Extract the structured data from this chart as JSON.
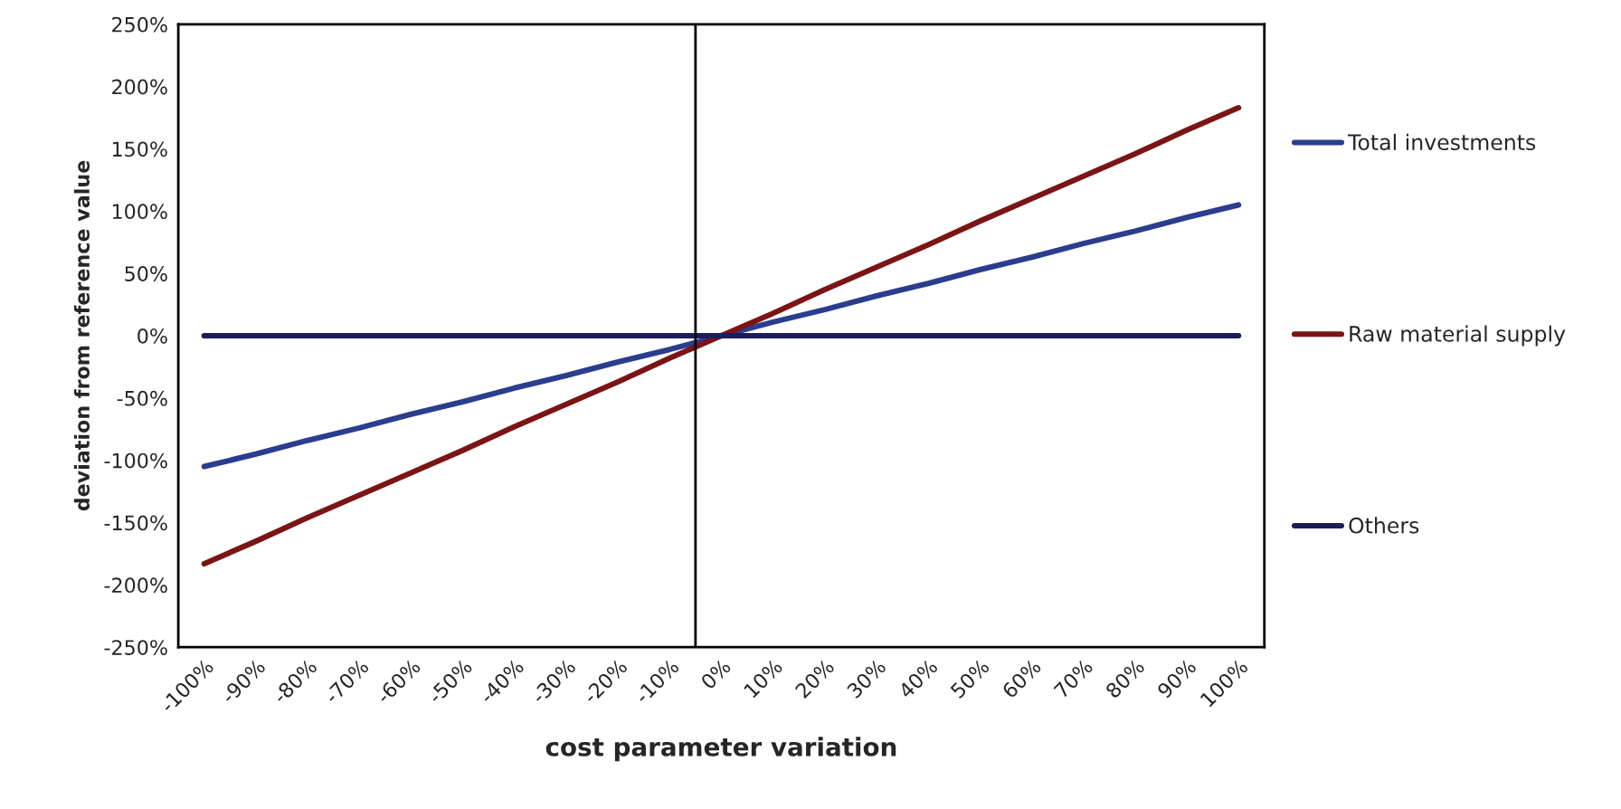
{
  "chart_data": {
    "type": "line",
    "xlabel": "cost parameter variation",
    "ylabel": "deviation from reference value",
    "x": [
      -100,
      -90,
      -80,
      -70,
      -60,
      -50,
      -40,
      -30,
      -20,
      -10,
      0,
      10,
      20,
      30,
      40,
      50,
      60,
      70,
      80,
      90,
      100
    ],
    "xlim": [
      -105,
      105
    ],
    "xticks": [
      {
        "value": -100,
        "label": "-100%"
      },
      {
        "value": -90,
        "label": "-90%"
      },
      {
        "value": -80,
        "label": "-80%"
      },
      {
        "value": -70,
        "label": "-70%"
      },
      {
        "value": -60,
        "label": "-60%"
      },
      {
        "value": -50,
        "label": "-50%"
      },
      {
        "value": -40,
        "label": "-40%"
      },
      {
        "value": -30,
        "label": "-30%"
      },
      {
        "value": -20,
        "label": "-20%"
      },
      {
        "value": -10,
        "label": "-10%"
      },
      {
        "value": 0,
        "label": "0%"
      },
      {
        "value": 10,
        "label": "10%"
      },
      {
        "value": 20,
        "label": "20%"
      },
      {
        "value": 30,
        "label": "30%"
      },
      {
        "value": 40,
        "label": "40%"
      },
      {
        "value": 50,
        "label": "50%"
      },
      {
        "value": 60,
        "label": "60%"
      },
      {
        "value": 70,
        "label": "70%"
      },
      {
        "value": 80,
        "label": "80%"
      },
      {
        "value": 90,
        "label": "90%"
      },
      {
        "value": 100,
        "label": "100%"
      }
    ],
    "ylim": [
      -250,
      250
    ],
    "yticks": [
      {
        "value": -250,
        "label": "-250%"
      },
      {
        "value": -200,
        "label": "-200%"
      },
      {
        "value": -150,
        "label": "-150%"
      },
      {
        "value": -100,
        "label": "-100%"
      },
      {
        "value": -50,
        "label": "-50%"
      },
      {
        "value": 0,
        "label": "0%"
      },
      {
        "value": 50,
        "label": "50%"
      },
      {
        "value": 100,
        "label": "100%"
      },
      {
        "value": 150,
        "label": "150%"
      },
      {
        "value": 200,
        "label": "200%"
      },
      {
        "value": 250,
        "label": "250%"
      }
    ],
    "series": [
      {
        "name": "Total investments",
        "color": "#2a3d8f",
        "values": [
          -105,
          -95,
          -84,
          -74,
          -63,
          -53,
          -42,
          -32,
          -21,
          -11,
          0,
          11,
          21,
          32,
          42,
          53,
          63,
          74,
          84,
          95,
          105
        ]
      },
      {
        "name": "Raw material supply",
        "color": "#7b1414",
        "values": [
          -183,
          -165,
          -146,
          -128,
          -110,
          -92,
          -73,
          -55,
          -37,
          -18,
          0,
          18,
          37,
          55,
          73,
          92,
          110,
          128,
          146,
          165,
          183
        ]
      },
      {
        "name": "Others",
        "color": "#1c1c5c",
        "values": [
          0,
          0,
          0,
          0,
          0,
          0,
          0,
          0,
          0,
          0,
          0,
          0,
          0,
          0,
          0,
          0,
          0,
          0,
          0,
          0,
          0
        ]
      }
    ],
    "ref_lines": [
      {
        "axis": "x",
        "value": -5,
        "color": "#000000"
      }
    ],
    "grid": false,
    "legend": "right",
    "marker": "none",
    "line_style": "solid"
  }
}
